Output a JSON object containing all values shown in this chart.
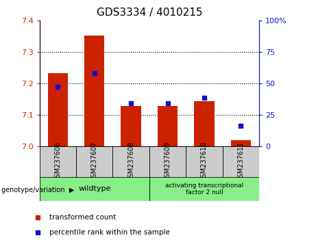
{
  "title": "GDS3334 / 4010215",
  "samples": [
    "GSM237606",
    "GSM237607",
    "GSM237608",
    "GSM237609",
    "GSM237610",
    "GSM237611"
  ],
  "red_values": [
    7.232,
    7.352,
    7.128,
    7.128,
    7.143,
    7.02
  ],
  "blue_values": [
    7.19,
    7.232,
    7.138,
    7.138,
    7.155,
    7.065
  ],
  "ylim": [
    7.0,
    7.4
  ],
  "yticks_left": [
    7.0,
    7.1,
    7.2,
    7.3,
    7.4
  ],
  "yticks_right": [
    0,
    25,
    50,
    75,
    100
  ],
  "bar_bottom": 7.0,
  "bar_color": "#cc2200",
  "blue_color": "#1111cc",
  "plot_bg": "#ffffff",
  "wildtype_color": "#88ee88",
  "atf2_color": "#88ee88",
  "wildtype_label": "wildtype",
  "atf2_label": "activating transcriptional\nfactor 2 null",
  "legend_red": "transformed count",
  "legend_blue": "percentile rank within the sample",
  "bar_width": 0.55,
  "title_fontsize": 11,
  "tick_fontsize": 8
}
